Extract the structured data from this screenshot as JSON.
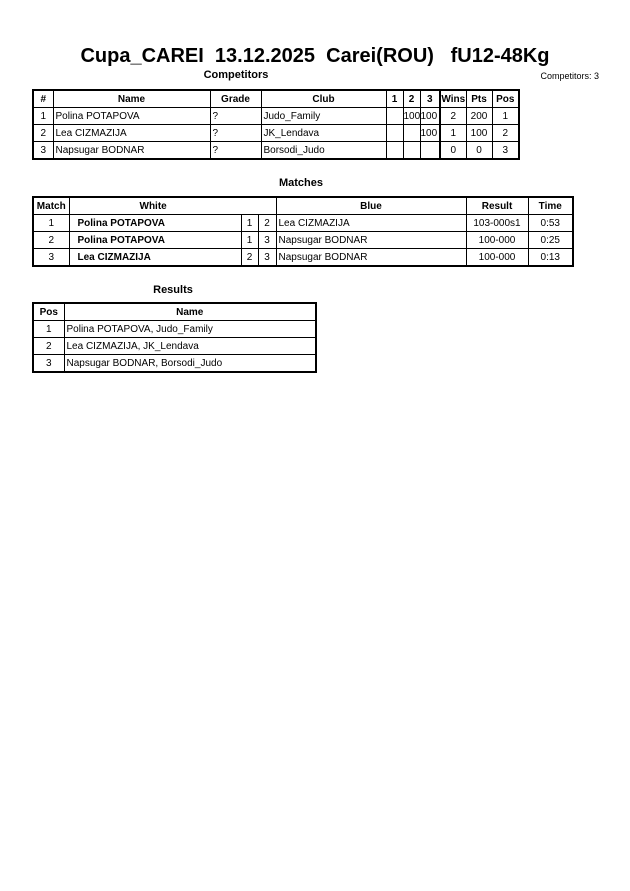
{
  "title": "Cupa_CAREI  13.12.2025  Carei(ROU)   fU12-48Kg",
  "competitors": {
    "heading": "Competitors",
    "count_label": "Competitors: 3",
    "headers": [
      "#",
      "Name",
      "Grade",
      "Club",
      "1",
      "2",
      "3",
      "Wins",
      "Pts",
      "Pos"
    ],
    "rows": [
      [
        "1",
        "Polina POTAPOVA",
        "?",
        "Judo_Family",
        "",
        "100",
        "100",
        "2",
        "200",
        "1"
      ],
      [
        "2",
        "Lea CIZMAZIJA",
        "?",
        "JK_Lendava",
        "",
        "",
        "100",
        "1",
        "100",
        "2"
      ],
      [
        "3",
        "Napsugar BODNAR",
        "?",
        "Borsodi_Judo",
        "",
        "",
        "",
        "0",
        "0",
        "3"
      ]
    ]
  },
  "matches": {
    "heading": "Matches",
    "headers": [
      "Match",
      "White",
      "Blue",
      "Result",
      "Time"
    ],
    "rows": [
      [
        "1",
        "Polina POTAPOVA",
        "1",
        "2",
        "Lea CIZMAZIJA",
        "103-000s1",
        "0:53"
      ],
      [
        "2",
        "Polina POTAPOVA",
        "1",
        "3",
        "Napsugar BODNAR",
        "100-000",
        "0:25"
      ],
      [
        "3",
        "Lea CIZMAZIJA",
        "2",
        "3",
        "Napsugar BODNAR",
        "100-000",
        "0:13"
      ]
    ]
  },
  "results": {
    "heading": "Results",
    "headers": [
      "Pos",
      "Name"
    ],
    "rows": [
      [
        "1",
        "Polina POTAPOVA, Judo_Family"
      ],
      [
        "2",
        "Lea CIZMAZIJA, JK_Lendava"
      ],
      [
        "3",
        "Napsugar BODNAR, Borsodi_Judo"
      ]
    ]
  }
}
